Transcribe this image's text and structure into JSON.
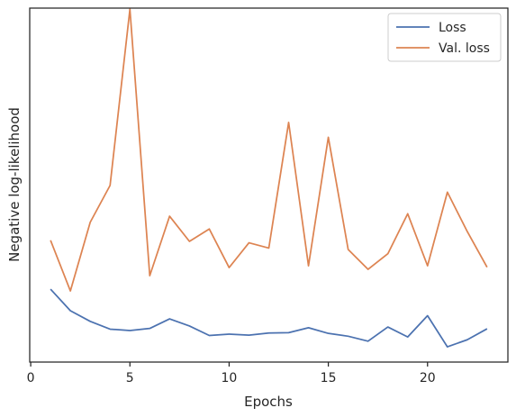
{
  "chart_data": {
    "type": "line",
    "title": "",
    "xlabel": "Epochs",
    "ylabel": "Negative log-likelihood",
    "xlim": [
      -0.05,
      24.05
    ],
    "ylim": [
      0.0,
      1.0
    ],
    "xticks": [
      0,
      5,
      10,
      15,
      20
    ],
    "yticks_shown": false,
    "grid": false,
    "legend_position": "upper-right",
    "x": [
      1,
      2,
      3,
      4,
      5,
      6,
      7,
      8,
      9,
      10,
      11,
      12,
      13,
      14,
      15,
      16,
      17,
      18,
      19,
      20,
      21,
      22,
      23
    ],
    "series": [
      {
        "name": "Loss",
        "color": "#4c72b0",
        "values": [
          0.206,
          0.145,
          0.115,
          0.093,
          0.089,
          0.095,
          0.122,
          0.102,
          0.075,
          0.079,
          0.076,
          0.082,
          0.083,
          0.097,
          0.081,
          0.073,
          0.059,
          0.099,
          0.071,
          0.131,
          0.043,
          0.063,
          0.094
        ]
      },
      {
        "name": "Val. loss",
        "color": "#dd8452",
        "values": [
          0.344,
          0.201,
          0.395,
          0.499,
          0.997,
          0.244,
          0.412,
          0.341,
          0.376,
          0.267,
          0.337,
          0.322,
          0.677,
          0.272,
          0.635,
          0.318,
          0.262,
          0.306,
          0.419,
          0.272,
          0.48,
          0.369,
          0.268
        ]
      }
    ]
  }
}
